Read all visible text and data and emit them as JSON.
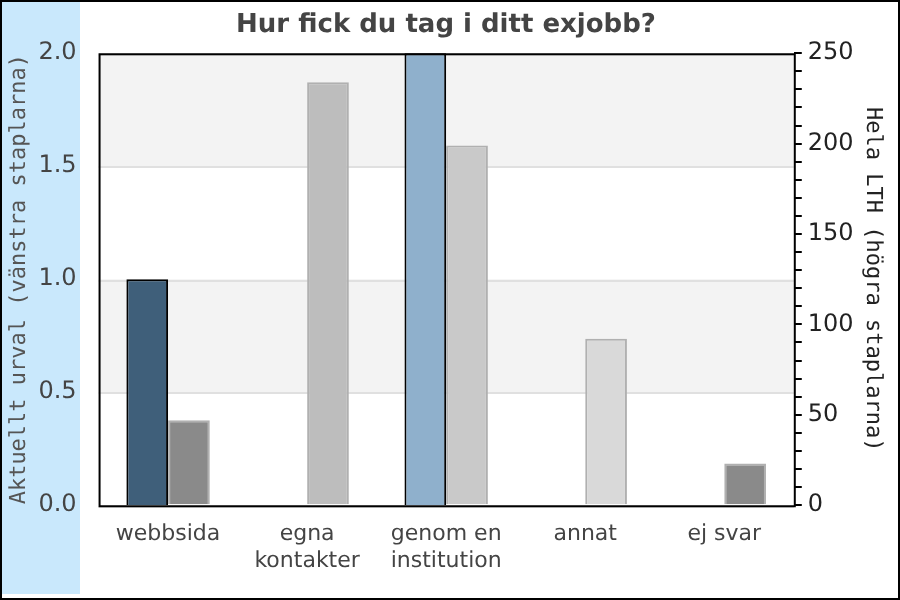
{
  "chart_data": {
    "type": "bar",
    "title": "Hur fick du tag i ditt exjobb?",
    "ylabel": "Aktuellt urval (vänstra staplarna)",
    "y2label": "Hela LTH (högra staplarna)",
    "categories": [
      "webbsida",
      "egna kontakter",
      "genom en institution",
      "annat",
      "ej svar"
    ],
    "series": [
      {
        "colors": [
          "#3f5f7a",
          null,
          "#8fb0cc",
          null,
          null
        ],
        "values": [
          1,
          null,
          2,
          null,
          null
        ]
      },
      {
        "axis": "y2",
        "colors": [
          "#8a8a8a",
          "#bdbdbd",
          "#c9c9c9",
          "#d9d9d9",
          "#8a8a8a"
        ],
        "values": [
          47,
          234,
          199,
          92,
          23
        ]
      }
    ],
    "ylim": [
      0,
      2
    ],
    "yticks": [
      {
        "value": 0,
        "label": "0.0"
      },
      {
        "value": 0.5,
        "label": "0.5"
      },
      {
        "value": 1,
        "label": "1.0"
      },
      {
        "value": 1.5,
        "label": "1.5"
      },
      {
        "value": 2,
        "label": "2.0"
      }
    ],
    "y2lim": [
      0,
      250
    ],
    "y2ticks": [
      0,
      {
        "value": 10,
        "label": null
      },
      {
        "value": 20,
        "label": null
      },
      {
        "value": 30,
        "label": null
      },
      {
        "value": 40,
        "label": null
      },
      50,
      {
        "value": 60,
        "label": null
      },
      {
        "value": 70,
        "label": null
      },
      {
        "value": 80,
        "label": null
      },
      {
        "value": 90,
        "label": null
      },
      100,
      {
        "value": 110,
        "label": null
      },
      {
        "value": 120,
        "label": null
      },
      {
        "value": 130,
        "label": null
      },
      {
        "value": 140,
        "label": null
      },
      150,
      {
        "value": 160,
        "label": null
      },
      {
        "value": 170,
        "label": null
      },
      {
        "value": 180,
        "label": null
      },
      {
        "value": 190,
        "label": null
      },
      200,
      {
        "value": 210,
        "label": null
      },
      {
        "value": 220,
        "label": null
      },
      {
        "value": 230,
        "label": null
      },
      {
        "value": 240,
        "label": null
      },
      250
    ],
    "grid": "y",
    "legend": false
  }
}
